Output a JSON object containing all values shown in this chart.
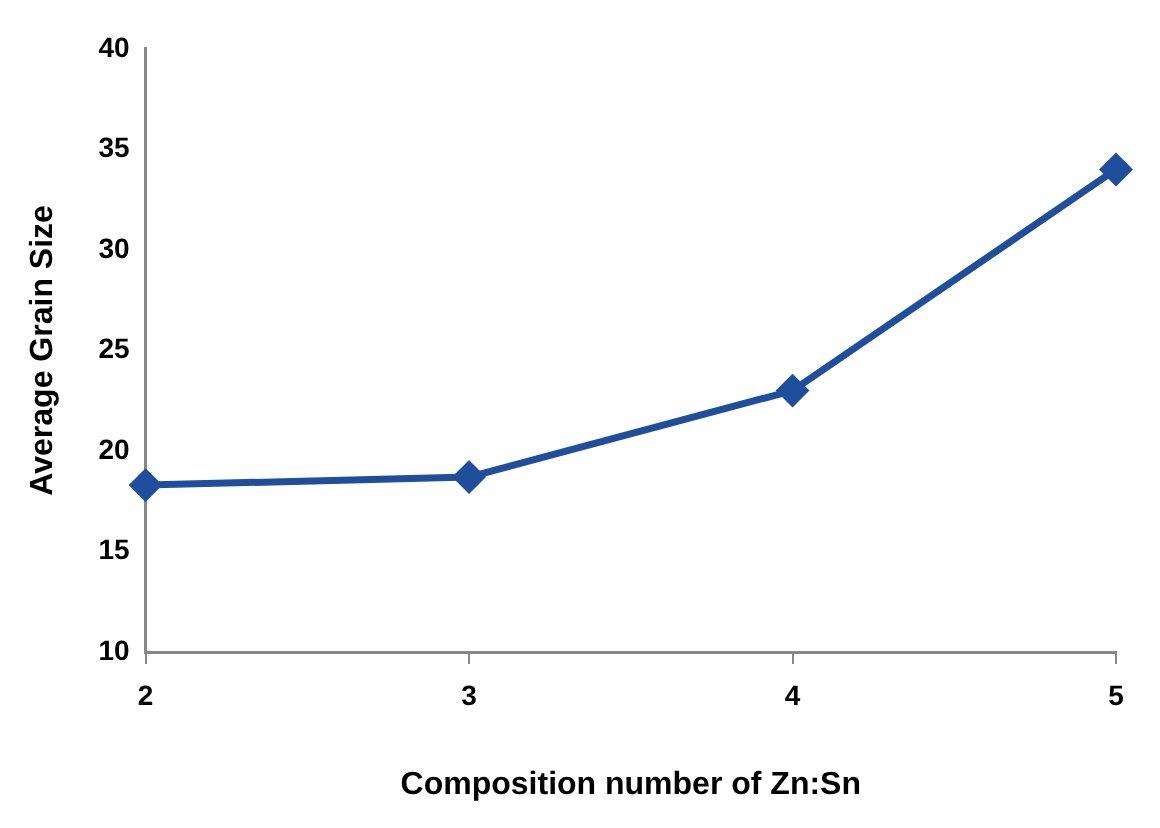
{
  "chart_data": {
    "type": "line",
    "xlabel": "Composition number of Zn:Sn",
    "ylabel": "Average Grain Size",
    "x": [
      2,
      3,
      4,
      5
    ],
    "series": [
      {
        "color": "#1f4e9c",
        "values": [
          18.3,
          18.7,
          23,
          34
        ]
      }
    ],
    "xlim": [
      2,
      5
    ],
    "xticks": [
      2,
      3,
      4,
      5
    ],
    "ylim": [
      10,
      40
    ],
    "yticks": [
      10,
      15,
      20,
      25,
      30,
      35,
      40
    ],
    "grid": false,
    "legend": false,
    "marker": "diamond",
    "line_style": "solid"
  }
}
